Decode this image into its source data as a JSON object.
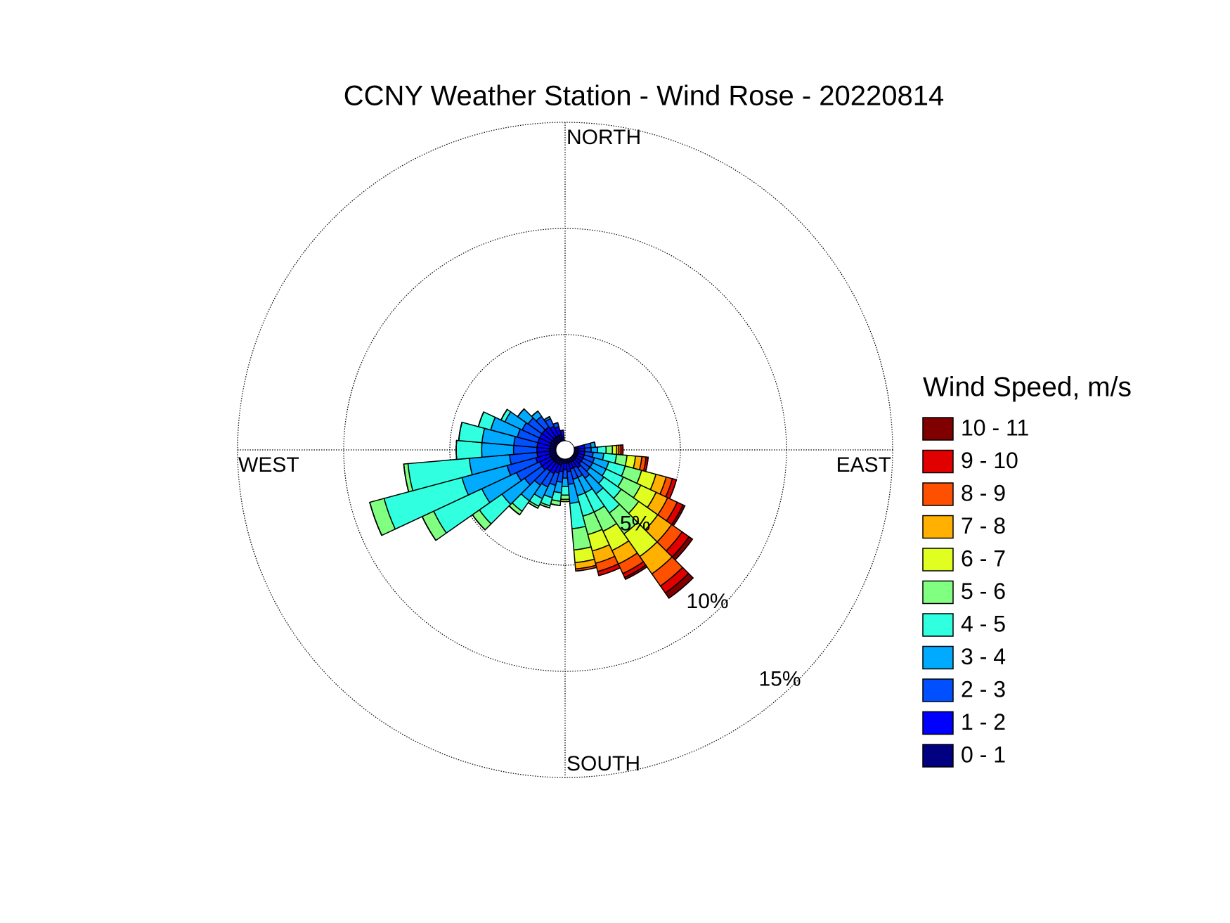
{
  "chart_data": {
    "type": "windrose",
    "title": "CCNY Weather Station - Wind Rose - 20220814",
    "legend_title": "Wind Speed, m/s",
    "direction_labels": {
      "north": "NORTH",
      "east": "EAST",
      "south": "SOUTH",
      "west": "WEST"
    },
    "rlim": [
      0,
      15
    ],
    "rticks": [
      {
        "value": 5,
        "label": "5%"
      },
      {
        "value": 10,
        "label": "10%"
      },
      {
        "value": 15,
        "label": "15%"
      }
    ],
    "grid": true,
    "x": [
      80,
      90,
      100,
      110,
      120,
      130,
      140,
      150,
      160,
      170,
      180,
      190,
      200,
      210,
      220,
      230,
      240,
      250,
      260,
      270,
      280,
      290,
      300,
      310,
      320,
      330,
      340,
      350
    ],
    "series": [
      {
        "name": "0 - 1",
        "color": "#000080",
        "values": [
          0.2,
          0.2,
          0.2,
          0.2,
          0.2,
          0.2,
          0.2,
          0.2,
          0.2,
          0.2,
          0.2,
          0.2,
          0.3,
          0.3,
          0.3,
          0.3,
          0.3,
          0.3,
          0.3,
          0.3,
          0.3,
          0.3,
          0.3,
          0.3,
          0.3,
          0.3,
          0.3,
          0.2
        ]
      },
      {
        "name": "1 - 2",
        "color": "#0000ff",
        "values": [
          0.3,
          0.3,
          0.3,
          0.3,
          0.3,
          0.3,
          0.4,
          0.3,
          0.3,
          0.4,
          0.3,
          0.4,
          0.4,
          0.5,
          0.5,
          0.6,
          0.6,
          0.7,
          0.6,
          0.6,
          0.6,
          0.6,
          0.6,
          0.6,
          0.6,
          0.5,
          0.4,
          0.3
        ]
      },
      {
        "name": "2 - 3",
        "color": "#0050ff",
        "values": [
          0.3,
          0.3,
          0.4,
          0.5,
          0.5,
          0.5,
          0.6,
          0.5,
          0.5,
          0.6,
          0.4,
          0.5,
          0.6,
          0.7,
          0.8,
          1.0,
          1.2,
          1.4,
          1.3,
          1.1,
          1.1,
          1.0,
          0.9,
          0.8,
          0.6,
          0.4,
          0.2,
          0
        ]
      },
      {
        "name": "3 - 4",
        "color": "#00aaff",
        "values": [
          0.2,
          0.3,
          0.5,
          0.7,
          0.7,
          0.8,
          0.9,
          0.8,
          0.8,
          0.9,
          0.4,
          0.5,
          0.6,
          0.6,
          0.9,
          1.3,
          1.8,
          2.2,
          1.9,
          1.5,
          1.5,
          1.3,
          0.9,
          0.6,
          0.3,
          0.1,
          0,
          0
        ]
      },
      {
        "name": "4 - 5",
        "color": "#30ffe0",
        "values": [
          0,
          0.4,
          0.6,
          0.8,
          0.9,
          1.0,
          1.1,
          1.0,
          1.0,
          1.2,
          0.4,
          0.4,
          0.4,
          0.4,
          0.6,
          1.3,
          2.5,
          3.8,
          2.9,
          1.2,
          1.1,
          0.6,
          0.2,
          0,
          0,
          0,
          0,
          0
        ]
      },
      {
        "name": "5 - 6",
        "color": "#80ff80",
        "values": [
          0,
          0.3,
          0.5,
          0.8,
          0.9,
          1.0,
          1.2,
          1.0,
          0.9,
          1.0,
          0.2,
          0.2,
          0.1,
          0.1,
          0.2,
          0.4,
          0.6,
          0.7,
          0.2,
          0,
          0,
          0,
          0,
          0,
          0,
          0,
          0,
          0
        ]
      },
      {
        "name": "6 - 7",
        "color": "#e0ff20",
        "values": [
          0,
          0.2,
          0.4,
          0.7,
          0.8,
          1.1,
          1.3,
          1.0,
          0.8,
          0.6,
          0.1,
          0,
          0,
          0,
          0,
          0,
          0,
          0,
          0,
          0,
          0,
          0,
          0,
          0,
          0,
          0,
          0,
          0
        ]
      },
      {
        "name": "7 - 8",
        "color": "#ffb000",
        "values": [
          0,
          0.1,
          0.3,
          0.5,
          0.6,
          0.8,
          1.0,
          0.7,
          0.6,
          0.3,
          0,
          0,
          0,
          0,
          0,
          0,
          0,
          0,
          0,
          0,
          0,
          0,
          0,
          0,
          0,
          0,
          0,
          0
        ]
      },
      {
        "name": "8 - 9",
        "color": "#ff5000",
        "values": [
          0,
          0.1,
          0.2,
          0.3,
          0.5,
          0.6,
          0.7,
          0.5,
          0.4,
          0.1,
          0,
          0,
          0,
          0,
          0,
          0,
          0,
          0,
          0,
          0,
          0,
          0,
          0,
          0,
          0,
          0,
          0,
          0
        ]
      },
      {
        "name": "9 - 10",
        "color": "#e00000",
        "values": [
          0,
          0.1,
          0.1,
          0.2,
          0.3,
          0.4,
          0.4,
          0.2,
          0.2,
          0,
          0,
          0,
          0,
          0,
          0,
          0,
          0,
          0,
          0,
          0,
          0,
          0,
          0,
          0,
          0,
          0,
          0,
          0
        ]
      },
      {
        "name": "10 - 11",
        "color": "#800000",
        "values": [
          0,
          0,
          0,
          0,
          0.1,
          0.2,
          0.3,
          0.1,
          0,
          0,
          0,
          0,
          0,
          0,
          0,
          0,
          0,
          0,
          0,
          0,
          0,
          0,
          0,
          0,
          0,
          0,
          0,
          0
        ]
      }
    ]
  }
}
